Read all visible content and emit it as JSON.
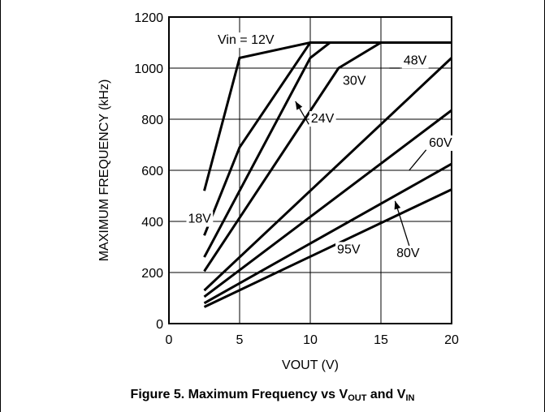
{
  "chart_data": {
    "type": "line",
    "title": "",
    "xlabel": "VOUT (V)",
    "ylabel": "MAXIMUM FREQUENCY (kHz)",
    "xlim": [
      0,
      20
    ],
    "ylim": [
      0,
      1200
    ],
    "x_ticks": [
      "0",
      "5",
      "10",
      "15",
      "20"
    ],
    "y_ticks": [
      "0",
      "200",
      "400",
      "600",
      "800",
      "1000",
      "1200"
    ],
    "grid": true,
    "series": [
      {
        "name": "12V",
        "points": [
          [
            2.5,
            520
          ],
          [
            5,
            1040
          ],
          [
            10,
            1100
          ],
          [
            20,
            1100
          ]
        ]
      },
      {
        "name": "18V",
        "points": [
          [
            2.5,
            345
          ],
          [
            5,
            690
          ],
          [
            10,
            1100
          ],
          [
            20,
            1100
          ]
        ]
      },
      {
        "name": "24V",
        "points": [
          [
            2.5,
            260
          ],
          [
            10,
            1040
          ],
          [
            11.4,
            1100
          ],
          [
            20,
            1100
          ]
        ]
      },
      {
        "name": "30V",
        "points": [
          [
            2.5,
            205
          ],
          [
            12,
            1000
          ],
          [
            15,
            1100
          ],
          [
            20,
            1100
          ]
        ]
      },
      {
        "name": "48V",
        "points": [
          [
            2.5,
            130
          ],
          [
            20,
            1040
          ]
        ]
      },
      {
        "name": "60V",
        "points": [
          [
            2.5,
            105
          ],
          [
            20,
            835
          ]
        ]
      },
      {
        "name": "80V",
        "points": [
          [
            2.5,
            80
          ],
          [
            20,
            625
          ]
        ]
      },
      {
        "name": "95V",
        "points": [
          [
            2.5,
            65
          ],
          [
            20,
            525
          ]
        ]
      }
    ],
    "annotations": [
      {
        "text": "Vin = 12V",
        "x": 3.45,
        "y": 1095
      },
      {
        "text": "18V",
        "x": 1.35,
        "y": 395
      },
      {
        "text": "24V",
        "x": 10.05,
        "y": 787
      },
      {
        "text": "30V",
        "x": 12.3,
        "y": 935
      },
      {
        "text": "48V",
        "x": 16.6,
        "y": 1015
      },
      {
        "text": "60V",
        "x": 18.4,
        "y": 692
      },
      {
        "text": "80V",
        "x": 16.1,
        "y": 260
      },
      {
        "text": "95V",
        "x": 11.9,
        "y": 275
      }
    ],
    "caption": {
      "prefix": "Figure 5. Maximum Frequency vs V",
      "sub1": "OUT",
      "middle": " and V",
      "sub2": "IN"
    }
  }
}
